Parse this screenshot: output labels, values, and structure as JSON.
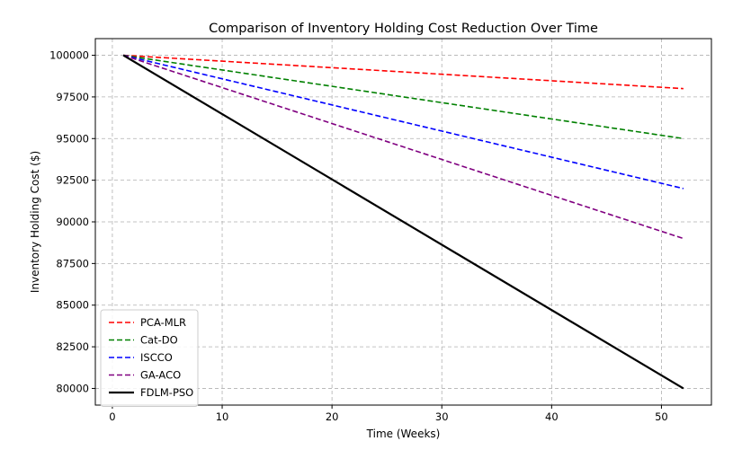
{
  "chart_data": {
    "type": "line",
    "title": "Comparison of Inventory Holding Cost Reduction Over Time",
    "xlabel": "Time (Weeks)",
    "ylabel": "Inventory Holding Cost ($)",
    "xlim": [
      -1.55,
      54.55
    ],
    "ylim": [
      79000,
      101000
    ],
    "xticks": [
      0,
      10,
      20,
      30,
      40,
      50
    ],
    "yticks": [
      80000,
      82500,
      85000,
      87500,
      90000,
      92500,
      95000,
      97500,
      100000
    ],
    "x": [
      1,
      52
    ],
    "grid": true,
    "legend_position": "lower-left",
    "series": [
      {
        "name": "PCA-MLR",
        "values": [
          100000,
          98000
        ],
        "color": "#ff0000",
        "style": "dashed"
      },
      {
        "name": "Cat-DO",
        "values": [
          100000,
          95000
        ],
        "color": "#008000",
        "style": "dashed"
      },
      {
        "name": "ISCCO",
        "values": [
          100000,
          92000
        ],
        "color": "#0000ff",
        "style": "dashed"
      },
      {
        "name": "GA-ACO",
        "values": [
          100000,
          89000
        ],
        "color": "#800080",
        "style": "dashed"
      },
      {
        "name": "FDLM-PSO",
        "values": [
          100000,
          80000
        ],
        "color": "#000000",
        "style": "solid"
      }
    ]
  }
}
